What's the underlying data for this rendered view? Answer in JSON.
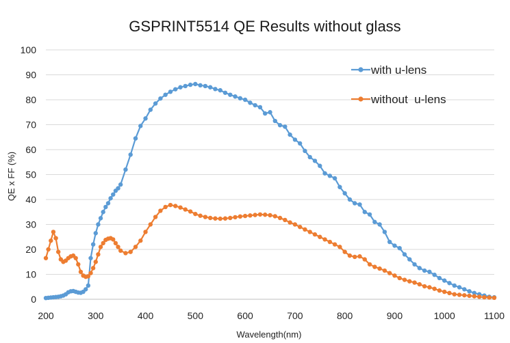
{
  "chart_data": {
    "type": "line",
    "title": "GSPRINT5514 QE Results without glass",
    "xlabel": "Wavelength(nm)",
    "ylabel": "QE x FF (%)",
    "xlim": [
      200,
      1100
    ],
    "ylim": [
      0,
      100
    ],
    "x_ticks": [
      "200",
      "300",
      "400",
      "500",
      "600",
      "700",
      "800",
      "900",
      "1000",
      "1100"
    ],
    "y_ticks": [
      "0",
      "10",
      "20",
      "30",
      "40",
      "50",
      "60",
      "70",
      "80",
      "90",
      "100"
    ],
    "grid": "horizontal",
    "legend_position": "top-right",
    "series": [
      {
        "name": "with u-lens",
        "color": "#5b9bd5",
        "points": [
          [
            200,
            0.5
          ],
          [
            205,
            0.6
          ],
          [
            210,
            0.7
          ],
          [
            215,
            0.8
          ],
          [
            220,
            0.9
          ],
          [
            225,
            1.0
          ],
          [
            230,
            1.2
          ],
          [
            235,
            1.5
          ],
          [
            240,
            2.0
          ],
          [
            245,
            2.8
          ],
          [
            250,
            3.2
          ],
          [
            255,
            3.3
          ],
          [
            260,
            3.0
          ],
          [
            265,
            2.7
          ],
          [
            270,
            2.6
          ],
          [
            275,
            3.0
          ],
          [
            280,
            4.0
          ],
          [
            285,
            5.5
          ],
          [
            290,
            16.5
          ],
          [
            295,
            22
          ],
          [
            300,
            26.5
          ],
          [
            305,
            30
          ],
          [
            310,
            32.5
          ],
          [
            315,
            35
          ],
          [
            320,
            37
          ],
          [
            325,
            38.5
          ],
          [
            330,
            40.5
          ],
          [
            335,
            42
          ],
          [
            340,
            43.5
          ],
          [
            345,
            44.5
          ],
          [
            350,
            46
          ],
          [
            360,
            52
          ],
          [
            370,
            58
          ],
          [
            380,
            64.5
          ],
          [
            390,
            69.5
          ],
          [
            400,
            72.5
          ],
          [
            410,
            76
          ],
          [
            420,
            78.5
          ],
          [
            430,
            80.5
          ],
          [
            440,
            82
          ],
          [
            450,
            83.2
          ],
          [
            460,
            84.2
          ],
          [
            470,
            85
          ],
          [
            480,
            85.5
          ],
          [
            490,
            86
          ],
          [
            500,
            86.3
          ],
          [
            510,
            85.8
          ],
          [
            520,
            85.5
          ],
          [
            530,
            85
          ],
          [
            540,
            84.3
          ],
          [
            550,
            83.8
          ],
          [
            560,
            82.8
          ],
          [
            570,
            82
          ],
          [
            580,
            81.3
          ],
          [
            590,
            80.6
          ],
          [
            600,
            80
          ],
          [
            610,
            78.8
          ],
          [
            620,
            77.8
          ],
          [
            630,
            77
          ],
          [
            640,
            74.5
          ],
          [
            650,
            75
          ],
          [
            660,
            71.5
          ],
          [
            670,
            69.8
          ],
          [
            680,
            69.2
          ],
          [
            690,
            66
          ],
          [
            700,
            64
          ],
          [
            710,
            62.5
          ],
          [
            720,
            59.5
          ],
          [
            730,
            57
          ],
          [
            740,
            55.5
          ],
          [
            750,
            53.5
          ],
          [
            760,
            50.5
          ],
          [
            770,
            49.5
          ],
          [
            780,
            48.5
          ],
          [
            790,
            45
          ],
          [
            800,
            42.5
          ],
          [
            810,
            40
          ],
          [
            820,
            38.5
          ],
          [
            830,
            38
          ],
          [
            840,
            35
          ],
          [
            850,
            34
          ],
          [
            860,
            31
          ],
          [
            870,
            30
          ],
          [
            880,
            27
          ],
          [
            890,
            23
          ],
          [
            900,
            21.5
          ],
          [
            910,
            20.5
          ],
          [
            920,
            18
          ],
          [
            930,
            16
          ],
          [
            940,
            14
          ],
          [
            950,
            12.5
          ],
          [
            960,
            11.5
          ],
          [
            970,
            11
          ],
          [
            980,
            9.8
          ],
          [
            990,
            8.5
          ],
          [
            1000,
            7.5
          ],
          [
            1010,
            6.5
          ],
          [
            1020,
            5.5
          ],
          [
            1030,
            4.8
          ],
          [
            1040,
            4
          ],
          [
            1050,
            3.2
          ],
          [
            1060,
            2.5
          ],
          [
            1070,
            2
          ],
          [
            1080,
            1.5
          ],
          [
            1090,
            1
          ],
          [
            1100,
            0.8
          ]
        ]
      },
      {
        "name": "without  u-lens",
        "color": "#ed7d31",
        "points": [
          [
            200,
            16.5
          ],
          [
            205,
            20
          ],
          [
            210,
            23.5
          ],
          [
            215,
            27
          ],
          [
            220,
            24.5
          ],
          [
            225,
            19
          ],
          [
            230,
            16
          ],
          [
            235,
            15
          ],
          [
            240,
            15.5
          ],
          [
            245,
            16.5
          ],
          [
            250,
            17.2
          ],
          [
            255,
            17.5
          ],
          [
            260,
            16.5
          ],
          [
            265,
            14
          ],
          [
            270,
            11
          ],
          [
            275,
            9.5
          ],
          [
            280,
            9
          ],
          [
            285,
            9.2
          ],
          [
            290,
            10.5
          ],
          [
            295,
            12.5
          ],
          [
            300,
            15
          ],
          [
            305,
            18
          ],
          [
            310,
            21
          ],
          [
            315,
            22.5
          ],
          [
            320,
            23.8
          ],
          [
            325,
            24.3
          ],
          [
            330,
            24.5
          ],
          [
            335,
            24
          ],
          [
            340,
            22.5
          ],
          [
            345,
            21
          ],
          [
            350,
            19.5
          ],
          [
            360,
            18.5
          ],
          [
            370,
            19
          ],
          [
            380,
            21
          ],
          [
            390,
            23.5
          ],
          [
            400,
            27
          ],
          [
            410,
            30
          ],
          [
            420,
            33
          ],
          [
            430,
            35.5
          ],
          [
            440,
            37
          ],
          [
            450,
            37.8
          ],
          [
            460,
            37.4
          ],
          [
            470,
            36.8
          ],
          [
            480,
            36
          ],
          [
            490,
            35.2
          ],
          [
            500,
            34.2
          ],
          [
            510,
            33.5
          ],
          [
            520,
            33
          ],
          [
            530,
            32.6
          ],
          [
            540,
            32.4
          ],
          [
            550,
            32.3
          ],
          [
            560,
            32.4
          ],
          [
            570,
            32.6
          ],
          [
            580,
            32.9
          ],
          [
            590,
            33.2
          ],
          [
            600,
            33.4
          ],
          [
            610,
            33.6
          ],
          [
            620,
            33.8
          ],
          [
            630,
            34
          ],
          [
            640,
            33.9
          ],
          [
            650,
            33.7
          ],
          [
            660,
            33.3
          ],
          [
            670,
            32.6
          ],
          [
            680,
            31.8
          ],
          [
            690,
            30.8
          ],
          [
            700,
            30
          ],
          [
            710,
            29
          ],
          [
            720,
            28
          ],
          [
            730,
            27
          ],
          [
            740,
            26
          ],
          [
            750,
            25
          ],
          [
            760,
            24
          ],
          [
            770,
            23
          ],
          [
            780,
            22
          ],
          [
            790,
            21
          ],
          [
            800,
            19
          ],
          [
            810,
            17.5
          ],
          [
            820,
            17
          ],
          [
            830,
            17.2
          ],
          [
            840,
            16
          ],
          [
            850,
            14
          ],
          [
            860,
            13
          ],
          [
            870,
            12.3
          ],
          [
            880,
            11.5
          ],
          [
            890,
            10.5
          ],
          [
            900,
            9.5
          ],
          [
            910,
            8.5
          ],
          [
            920,
            7.8
          ],
          [
            930,
            7.2
          ],
          [
            940,
            6.7
          ],
          [
            950,
            6
          ],
          [
            960,
            5.2
          ],
          [
            970,
            4.8
          ],
          [
            980,
            4.2
          ],
          [
            990,
            3.5
          ],
          [
            1000,
            3
          ],
          [
            1010,
            2.5
          ],
          [
            1020,
            2
          ],
          [
            1030,
            1.8
          ],
          [
            1040,
            1.6
          ],
          [
            1050,
            1.4
          ],
          [
            1060,
            1.2
          ],
          [
            1070,
            1
          ],
          [
            1080,
            0.8
          ],
          [
            1090,
            0.7
          ],
          [
            1100,
            0.6
          ]
        ]
      }
    ]
  }
}
